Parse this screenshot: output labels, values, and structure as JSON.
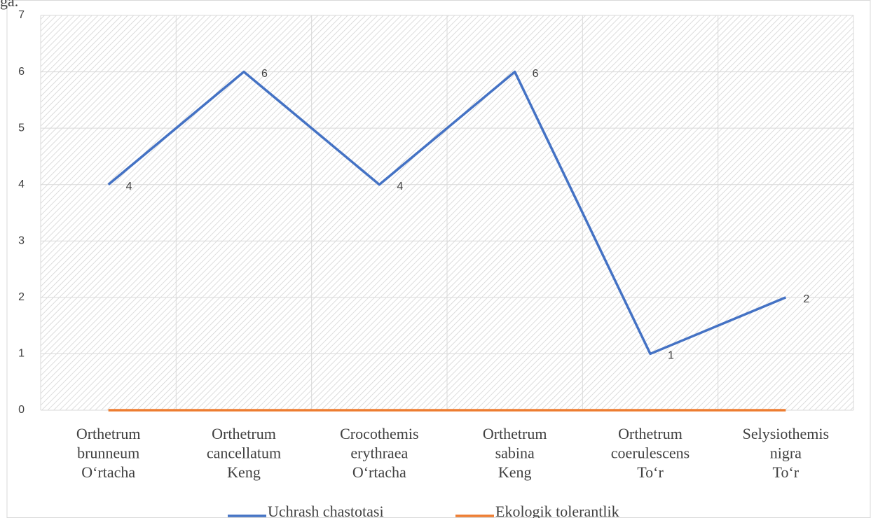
{
  "above_text": "ga.",
  "chart_data": {
    "type": "line",
    "categories": [
      "Orthetrum\nbrunneum\nO‘rtacha",
      "Orthetrum\ncancellatum\nKeng",
      "Crocothemis\nerythraea\nO‘rtacha",
      "Orthetrum\nsabina\nKeng",
      "Orthetrum\ncoerulescens\nTo‘r",
      "Selysiothemis\nnigra\nTo‘r"
    ],
    "series": [
      {
        "name": "Uchrash chastotasi",
        "color": "#4472c4",
        "values": [
          4,
          6,
          4,
          6,
          1,
          2
        ],
        "data_labels": true
      },
      {
        "name": "Ekologik tolerantlik",
        "color": "#ed7d31",
        "values": [
          0,
          0,
          0,
          0,
          0,
          0
        ],
        "data_labels": false
      }
    ],
    "ylim": [
      0,
      7
    ],
    "yticks": [
      0,
      1,
      2,
      3,
      4,
      5,
      6,
      7
    ],
    "grid": true,
    "legend": "bottom"
  }
}
